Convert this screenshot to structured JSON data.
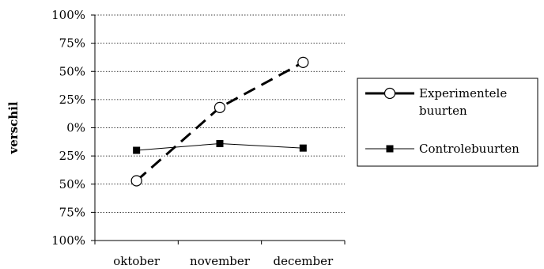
{
  "chart_data": {
    "type": "line",
    "ylabel": "verschil",
    "xlabel": "",
    "title": "",
    "categories": [
      "oktober",
      "november",
      "december"
    ],
    "y_tick_labels": [
      "100%",
      "75%",
      "50%",
      "25%",
      "0%",
      "25%",
      "50%",
      "75%",
      "100%"
    ],
    "ylim": [
      -100,
      100
    ],
    "y_tick_values": [
      100,
      75,
      50,
      25,
      0,
      -25,
      -50,
      -75,
      -100
    ],
    "grid": "horizontal dotted",
    "legend": "right",
    "series": [
      {
        "name_lines": [
          "Experimentele",
          "buurten"
        ],
        "values": [
          -47,
          18,
          58
        ],
        "style": "dashed",
        "marker": "circle-open",
        "color": "#000000"
      },
      {
        "name_lines": [
          "Controlebuurten"
        ],
        "values": [
          -20,
          -14,
          -18
        ],
        "style": "solid",
        "marker": "square-filled",
        "color": "#000000"
      }
    ]
  }
}
